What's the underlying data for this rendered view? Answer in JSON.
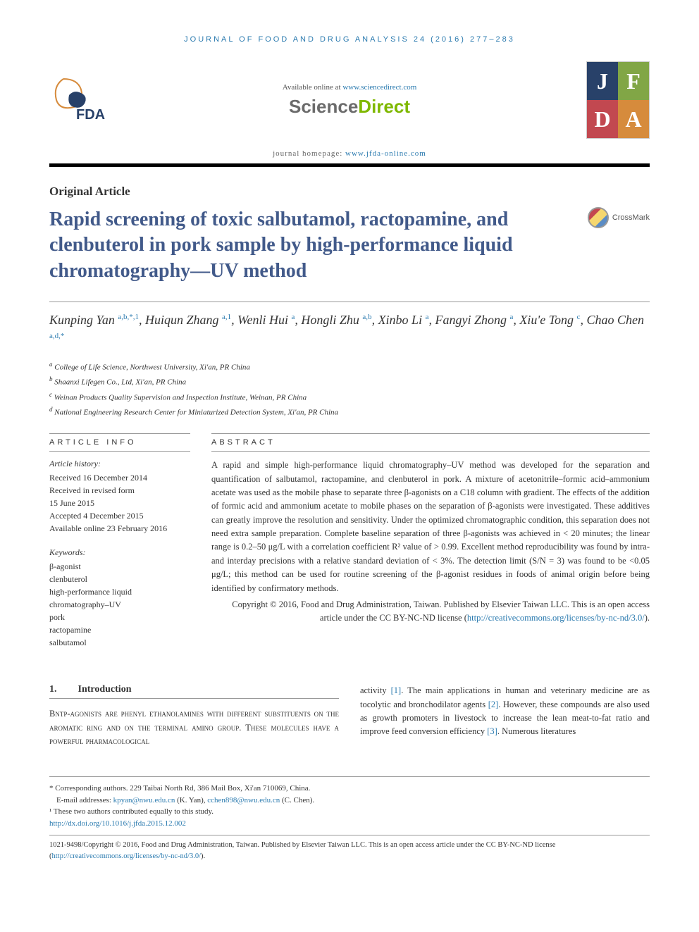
{
  "running_header": "JOURNAL OF FOOD AND DRUG ANALYSIS 24 (2016) 277–283",
  "available_prefix": "Available online at ",
  "available_link": "www.sciencedirect.com",
  "sd_science": "Science",
  "sd_direct": "Direct",
  "homepage_prefix": "journal homepage: ",
  "homepage_link": "www.jfda-online.com",
  "jfda_letters": [
    "J",
    "F",
    "D",
    "A"
  ],
  "jfda_colors": [
    "#284169",
    "#81a646",
    "#c24850",
    "#d68b3c"
  ],
  "article_type": "Original Article",
  "title": "Rapid screening of toxic salbutamol, ractopamine, and clenbuterol in pork sample by high-performance liquid chromatography—UV method",
  "crossmark_label": "CrossMark",
  "authors": [
    {
      "name": "Kunping Yan",
      "aff": "a,b,*,1"
    },
    {
      "name": "Huiqun Zhang",
      "aff": "a,1"
    },
    {
      "name": "Wenli Hui",
      "aff": "a"
    },
    {
      "name": "Hongli Zhu",
      "aff": "a,b"
    },
    {
      "name": "Xinbo Li",
      "aff": "a"
    },
    {
      "name": "Fangyi Zhong",
      "aff": "a"
    },
    {
      "name": "Xiu'e Tong",
      "aff": "c"
    },
    {
      "name": "Chao Chen",
      "aff": "a,d,*"
    }
  ],
  "affiliations": [
    {
      "sup": "a",
      "text": "College of Life Science, Northwest University, Xi'an, PR China"
    },
    {
      "sup": "b",
      "text": "Shaanxi Lifegen Co., Ltd, Xi'an, PR China"
    },
    {
      "sup": "c",
      "text": "Weinan Products Quality Supervision and Inspection Institute, Weinan, PR China"
    },
    {
      "sup": "d",
      "text": "National Engineering Research Center for Miniaturized Detection System, Xi'an, PR China"
    }
  ],
  "info_header": "ARTICLE INFO",
  "abstract_header": "ABSTRACT",
  "history_label": "Article history:",
  "history": [
    "Received 16 December 2014",
    "Received in revised form",
    "15 June 2015",
    "Accepted 4 December 2015",
    "Available online 23 February 2016"
  ],
  "keywords_label": "Keywords:",
  "keywords": [
    "β-agonist",
    "clenbuterol",
    "high-performance liquid",
    "chromatography–UV",
    "pork",
    "ractopamine",
    "salbutamol"
  ],
  "abstract": "A rapid and simple high-performance liquid chromatography–UV method was developed for the separation and quantification of salbutamol, ractopamine, and clenbuterol in pork. A mixture of acetonitrile–formic acid–ammonium acetate was used as the mobile phase to separate three β-agonists on a C18 column with gradient. The effects of the addition of formic acid and ammonium acetate to mobile phases on the separation of β-agonists were investigated. These additives can greatly improve the resolution and sensitivity. Under the optimized chromatographic condition, this separation does not need extra sample preparation. Complete baseline separation of three β-agonists was achieved in < 20 minutes; the linear range is 0.2–50 μg/L with a correlation coefficient R² value of > 0.99. Excellent method reproducibility was found by intra- and interday precisions with a relative standard deviation of < 3%. The detection limit (S/N = 3) was found to be <0.05 μg/L; this method can be used for routine screening of the β-agonist residues in foods of animal origin before being identified by confirmatory methods.",
  "copyright_line": "Copyright © 2016, Food and Drug Administration, Taiwan. Published by Elsevier Taiwan LLC. This is an open access article under the CC BY-NC-ND license (",
  "cc_link": "http://creativecommons.org/licenses/by-nc-nd/3.0/",
  "copyright_close": ").",
  "intro_num": "1.",
  "intro_title": "Introduction",
  "intro_col1": "Βντρ-agonists are phenyl ethanolamines with different substituents on the aromatic ring and on the terminal amino group. These molecules have a powerful pharmacological",
  "intro_col2_p1": "activity ",
  "intro_col2_ref1": "[1]",
  "intro_col2_p2": ". The main applications in human and veterinary medicine are as tocolytic and bronchodilator agents ",
  "intro_col2_ref2": "[2]",
  "intro_col2_p3": ". However, these compounds are also used as growth promoters in livestock to increase the lean meat-to-fat ratio and improve feed conversion efficiency ",
  "intro_col2_ref3": "[3]",
  "intro_col2_p4": ". Numerous literatures",
  "footnote_corr_label": "* Corresponding authors.",
  "footnote_corr_addr": " 229 Taibai North Rd, 386 Mail Box, Xi'an 710069, China.",
  "footnote_email_label": "E-mail addresses: ",
  "footnote_email1": "kpyan@nwu.edu.cn",
  "footnote_email1_who": " (K. Yan), ",
  "footnote_email2": "cchen898@nwu.edu.cn",
  "footnote_email2_who": " (C. Chen).",
  "footnote_contrib": "¹ These two authors contributed equally to this study.",
  "doi": "http://dx.doi.org/10.1016/j.jfda.2015.12.002",
  "bottom_copyright": "1021-9498/Copyright © 2016, Food and Drug Administration, Taiwan. Published by Elsevier Taiwan LLC. This is an open access article under the CC BY-NC-ND license ("
}
